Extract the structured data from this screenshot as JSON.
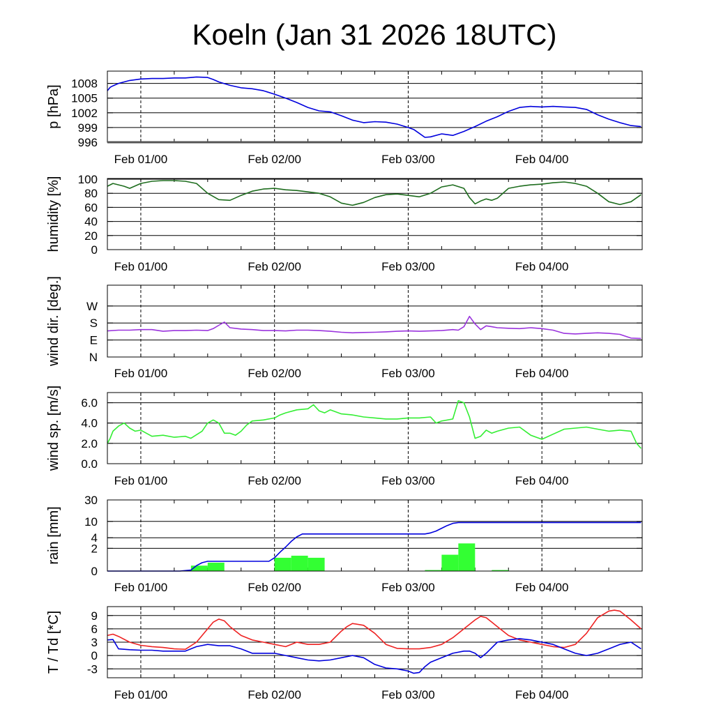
{
  "title": "Koeln (Jan 31 2026 18UTC)",
  "x_tick_labels": [
    "Feb 01/00",
    "Feb 02/00",
    "Feb 03/00",
    "Feb 04/00"
  ],
  "chart_data": [
    {
      "type": "line",
      "id": "pressure",
      "ylabel": "p [hPa]",
      "ylim": [
        996,
        1010.5
      ],
      "ytick_values": [
        996,
        999,
        1002,
        1005,
        1008
      ],
      "ytick_labels": [
        "996",
        "999",
        "1002",
        "1005",
        "1008"
      ],
      "series": [
        {
          "name": "pressure",
          "color": "#0000dd",
          "x": [
            0,
            0.5,
            1,
            2,
            4,
            6,
            8,
            10,
            12,
            14,
            16,
            18,
            19,
            20,
            22,
            24,
            26,
            28,
            30,
            32,
            34,
            36,
            38,
            40,
            42,
            44,
            46,
            48,
            50,
            52,
            54,
            55,
            56,
            57,
            58,
            60,
            62,
            64,
            66,
            68,
            70,
            72,
            74,
            76,
            78,
            80,
            82,
            84,
            86,
            88,
            90,
            92,
            94,
            95.8
          ],
          "values": [
            1006.5,
            1007.2,
            1007.5,
            1008.0,
            1008.6,
            1008.9,
            1009.0,
            1009.0,
            1009.1,
            1009.1,
            1009.3,
            1009.2,
            1008.8,
            1008.3,
            1007.6,
            1007.1,
            1006.9,
            1006.5,
            1005.8,
            1005.0,
            1004.1,
            1003.1,
            1002.4,
            1002.2,
            1001.4,
            1000.5,
            1000.0,
            1000.2,
            1000.1,
            999.7,
            999.0,
            998.6,
            997.8,
            997.0,
            997.1,
            997.7,
            997.4,
            998.2,
            999.2,
            1000.3,
            1001.2,
            1002.3,
            1003.1,
            1003.3,
            1003.2,
            1003.3,
            1003.2,
            1003.1,
            1002.7,
            1001.6,
            1000.7,
            1000.0,
            999.4,
            999.2
          ]
        }
      ]
    },
    {
      "type": "line",
      "id": "humidity",
      "ylabel": "humidity [%]",
      "ylim": [
        0,
        101
      ],
      "ytick_values": [
        0,
        20,
        40,
        60,
        80,
        100
      ],
      "ytick_labels": [
        "0",
        "20",
        "40",
        "60",
        "80",
        "100"
      ],
      "series": [
        {
          "name": "humidity",
          "color": "#1e6d1e",
          "x": [
            0,
            1,
            2,
            3,
            4,
            6,
            8,
            10,
            12,
            14,
            16,
            18,
            20,
            22,
            24,
            26,
            28,
            30,
            32,
            34,
            36,
            38,
            40,
            42,
            44,
            46,
            48,
            50,
            52,
            54,
            56,
            58,
            60,
            62,
            64,
            65,
            66,
            67,
            68,
            69,
            70,
            72,
            74,
            76,
            78,
            80,
            82,
            84,
            86,
            88,
            90,
            92,
            94,
            95.8
          ],
          "values": [
            90,
            94,
            92,
            90,
            87,
            94,
            97,
            98,
            98,
            97,
            94,
            80,
            71,
            70,
            77,
            83,
            86,
            87,
            85,
            84,
            82,
            80,
            75,
            66,
            63,
            67,
            74,
            78,
            79,
            77,
            75,
            80,
            89,
            92,
            87,
            74,
            65,
            69,
            72,
            70,
            73,
            87,
            90,
            92,
            93,
            95,
            96,
            94,
            90,
            80,
            68,
            64,
            68,
            78
          ]
        }
      ]
    },
    {
      "type": "line",
      "id": "wind_direction",
      "ylabel": "wind dir. [deg.]",
      "ylim": [
        0,
        380
      ],
      "ytick_values": [
        0,
        90,
        180,
        270
      ],
      "ytick_labels": [
        "N",
        "E",
        "S",
        "W"
      ],
      "series": [
        {
          "name": "wind direction",
          "color": "#9a33dd",
          "x": [
            0,
            2,
            4,
            6,
            8,
            10,
            12,
            14,
            16,
            18,
            19,
            20,
            21,
            22,
            24,
            26,
            28,
            30,
            32,
            34,
            36,
            38,
            40,
            42,
            44,
            46,
            48,
            50,
            52,
            54,
            56,
            58,
            60,
            62,
            63,
            64,
            65,
            66,
            67,
            68,
            69,
            70,
            72,
            74,
            76,
            78,
            80,
            82,
            84,
            86,
            88,
            90,
            92,
            94,
            95.8
          ],
          "values": [
            138,
            142,
            142,
            145,
            145,
            136,
            140,
            140,
            142,
            140,
            150,
            168,
            185,
            155,
            148,
            145,
            140,
            140,
            138,
            142,
            142,
            140,
            136,
            131,
            128,
            130,
            131,
            133,
            136,
            138,
            136,
            138,
            140,
            145,
            142,
            160,
            215,
            175,
            145,
            165,
            160,
            155,
            152,
            150,
            155,
            150,
            142,
            125,
            122,
            125,
            128,
            125,
            120,
            100,
            98
          ]
        }
      ]
    },
    {
      "type": "line",
      "id": "wind_speed",
      "ylabel": "wind sp. [m/s]",
      "ylim": [
        0,
        7.0
      ],
      "ytick_values": [
        0,
        2,
        4,
        6
      ],
      "ytick_labels": [
        "0.0",
        "2.0",
        "4.0",
        "6.0"
      ],
      "series": [
        {
          "name": "wind speed",
          "color": "#33ee33",
          "x": [
            0,
            0.5,
            1,
            2,
            3,
            4,
            5,
            6,
            8,
            10,
            12,
            14,
            15,
            17,
            18,
            19,
            20,
            21,
            22,
            23,
            24,
            25,
            26,
            28,
            30,
            31,
            32,
            34,
            36,
            37,
            38,
            39,
            40,
            42,
            44,
            46,
            48,
            50,
            52,
            54,
            56,
            58,
            59,
            60,
            62,
            63,
            64,
            65,
            66,
            67,
            68,
            69,
            70,
            72,
            74,
            76,
            78,
            80,
            82,
            84,
            86,
            88,
            90,
            92,
            94,
            95,
            95.8
          ],
          "values": [
            2.0,
            2.5,
            3.2,
            3.7,
            4.0,
            3.5,
            3.2,
            3.3,
            2.7,
            2.8,
            2.6,
            2.7,
            2.5,
            3.2,
            4.0,
            4.3,
            4.0,
            3.0,
            3.0,
            2.8,
            3.2,
            3.8,
            4.2,
            4.3,
            4.5,
            4.8,
            5.0,
            5.3,
            5.4,
            5.8,
            5.2,
            5.0,
            5.3,
            4.9,
            4.8,
            4.6,
            4.5,
            4.4,
            4.4,
            4.5,
            4.5,
            4.6,
            4.0,
            4.2,
            4.4,
            6.2,
            6.0,
            4.6,
            2.5,
            2.7,
            3.3,
            3.0,
            3.2,
            3.5,
            3.6,
            2.8,
            2.4,
            2.9,
            3.4,
            3.5,
            3.6,
            3.4,
            3.2,
            3.3,
            3.2,
            2.0,
            1.5
          ]
        }
      ]
    },
    {
      "type": "bar",
      "id": "rain",
      "ylabel": "rain [mm]",
      "ylim": [
        0,
        30
      ],
      "y_scale": "log1p",
      "ytick_values": [
        0,
        2,
        4,
        10,
        30
      ],
      "ytick_labels": [
        "0",
        "2",
        "4",
        "10",
        "30"
      ],
      "bars": {
        "name": "hourly rain",
        "color": "#33ff33",
        "x": [
          16.5,
          19.5,
          31.5,
          34.5,
          37.5,
          58.5,
          61.5,
          64.5,
          70.5
        ],
        "width": 3,
        "values": [
          0.3,
          0.5,
          0.9,
          1.1,
          0.9,
          0.05,
          1.2,
          2.8,
          0.05
        ]
      },
      "series": [
        {
          "name": "accumulated rain",
          "color": "#0000dd",
          "x": [
            0,
            13,
            15,
            16,
            17,
            18,
            24,
            29,
            30,
            31,
            32,
            33,
            34,
            35,
            36,
            40,
            50,
            57,
            58,
            59,
            60,
            61,
            62,
            63,
            64,
            70,
            80,
            90,
            95.8
          ],
          "values": [
            0,
            0,
            0.05,
            0.3,
            0.5,
            0.6,
            0.6,
            0.6,
            0.9,
            1.5,
            2.2,
            3.2,
            4.2,
            5.0,
            5.0,
            5.0,
            5.0,
            5.0,
            5.3,
            5.9,
            6.9,
            8.0,
            9.0,
            9.4,
            9.4,
            9.4,
            9.4,
            9.4,
            9.4
          ]
        }
      ]
    },
    {
      "type": "line",
      "id": "temperature_dewpoint",
      "ylabel": "T / Td [*C]",
      "ylim": [
        -5,
        11
      ],
      "ytick_values": [
        -3,
        0,
        3,
        6,
        9
      ],
      "ytick_labels": [
        "-3",
        "0",
        "3",
        "6",
        "9"
      ],
      "series": [
        {
          "name": "temperature",
          "color": "#ee2222",
          "x": [
            0,
            1,
            2,
            4,
            6,
            8,
            10,
            12,
            14,
            16,
            18,
            19,
            20,
            21,
            22,
            24,
            26,
            28,
            30,
            32,
            34,
            36,
            38,
            40,
            42,
            43,
            44,
            46,
            48,
            50,
            52,
            54,
            56,
            58,
            60,
            62,
            64,
            66,
            67,
            68,
            69,
            70,
            72,
            74,
            76,
            78,
            80,
            82,
            84,
            86,
            88,
            90,
            91,
            92,
            93,
            94,
            95.8
          ],
          "values": [
            4.5,
            4.8,
            4.3,
            3.0,
            2.3,
            2.0,
            1.8,
            1.5,
            1.4,
            3.0,
            6.0,
            7.5,
            8.2,
            7.8,
            6.5,
            4.5,
            3.5,
            3.0,
            2.5,
            2.0,
            3.0,
            2.5,
            2.5,
            3.0,
            5.5,
            6.5,
            7.2,
            6.8,
            5.0,
            2.5,
            1.6,
            1.5,
            1.5,
            1.8,
            2.5,
            4.0,
            6.0,
            8.0,
            8.8,
            8.5,
            7.5,
            6.5,
            4.5,
            3.5,
            3.0,
            2.5,
            2.0,
            1.8,
            2.5,
            5.0,
            8.5,
            10.0,
            10.2,
            10.0,
            9.0,
            8.0,
            6.0
          ]
        },
        {
          "name": "dew point",
          "color": "#0000dd",
          "x": [
            0,
            1,
            2,
            4,
            6,
            8,
            10,
            12,
            14,
            16,
            18,
            20,
            22,
            24,
            26,
            28,
            30,
            32,
            34,
            36,
            38,
            40,
            42,
            44,
            46,
            48,
            50,
            52,
            54,
            55,
            56,
            57,
            58,
            60,
            62,
            64,
            65,
            66,
            67,
            68,
            70,
            72,
            74,
            76,
            78,
            80,
            82,
            84,
            86,
            88,
            90,
            92,
            94,
            95.8
          ],
          "values": [
            3.5,
            3.6,
            1.5,
            1.3,
            1.2,
            1.2,
            1.0,
            1.0,
            1.0,
            2.0,
            2.5,
            2.2,
            2.2,
            1.5,
            0.5,
            0.5,
            0.5,
            0.0,
            -0.5,
            -1.0,
            -1.2,
            -1.0,
            -0.5,
            0.0,
            -0.5,
            -2.0,
            -2.8,
            -3.0,
            -3.5,
            -4.0,
            -3.8,
            -2.5,
            -1.5,
            -0.5,
            0.5,
            1.0,
            1.0,
            0.5,
            -0.5,
            0.5,
            3.0,
            3.5,
            3.8,
            3.5,
            3.0,
            2.5,
            1.5,
            0.5,
            0.0,
            0.5,
            1.5,
            2.5,
            3.0,
            1.5
          ]
        }
      ]
    }
  ]
}
